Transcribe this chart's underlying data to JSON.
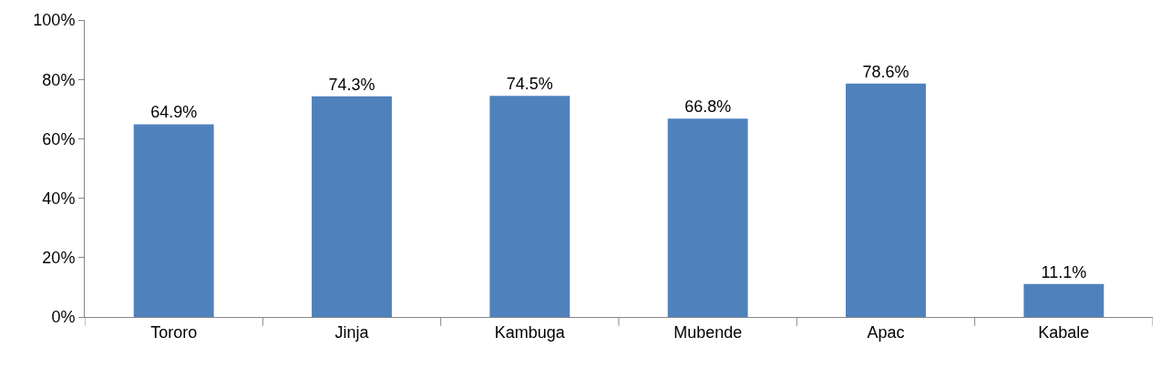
{
  "chart_data": {
    "type": "bar",
    "categories": [
      "Tororo",
      "Jinja",
      "Kambuga",
      "Mubende",
      "Apac",
      "Kabale"
    ],
    "values": [
      64.9,
      74.3,
      74.5,
      66.8,
      78.6,
      11.1
    ],
    "value_labels": [
      "64.9%",
      "74.3%",
      "74.5%",
      "66.8%",
      "78.6%",
      "11.1%"
    ],
    "color": "#4f81bd",
    "ylim": [
      0,
      100
    ],
    "yticks": [
      {
        "value": 0,
        "label": "0%"
      },
      {
        "value": 20,
        "label": "20%"
      },
      {
        "value": 40,
        "label": "40%"
      },
      {
        "value": 60,
        "label": "60%"
      },
      {
        "value": 80,
        "label": "80%"
      },
      {
        "value": 100,
        "label": "100%"
      }
    ]
  }
}
